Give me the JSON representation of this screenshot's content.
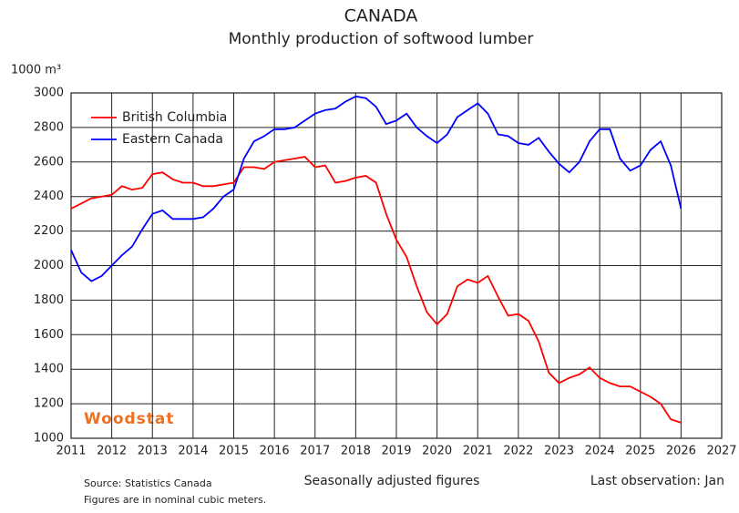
{
  "chart_data": {
    "type": "line",
    "title": "CANADA",
    "subtitle": "Monthly production of softwood lumber",
    "y_label": "1000 m³",
    "watermark": "Woodstat",
    "source": "Source: Statistics Canada",
    "note": "Figures are in nominal cubic meters.",
    "x_label": "Seasonally adjusted figures",
    "last_observation": "Last observation: Jan",
    "legend": "upper left",
    "grid": true,
    "xlim": [
      2011,
      2027
    ],
    "ylim": [
      1000,
      3000
    ],
    "xticks": [
      2011,
      2012,
      2013,
      2014,
      2015,
      2016,
      2017,
      2018,
      2019,
      2020,
      2021,
      2022,
      2023,
      2024,
      2025,
      2026,
      2027
    ],
    "yticks": [
      1000,
      1200,
      1400,
      1600,
      1800,
      2000,
      2200,
      2400,
      2600,
      2800,
      3000
    ],
    "x": [
      2011,
      2011.25,
      2011.5,
      2011.75,
      2012,
      2012.25,
      2012.5,
      2012.75,
      2013,
      2013.25,
      2013.5,
      2013.75,
      2014,
      2014.25,
      2014.5,
      2014.75,
      2015,
      2015.25,
      2015.5,
      2015.75,
      2016,
      2016.25,
      2016.5,
      2016.75,
      2017,
      2017.25,
      2017.5,
      2017.75,
      2018,
      2018.25,
      2018.5,
      2018.75,
      2019,
      2019.25,
      2019.5,
      2019.75,
      2020,
      2020.25,
      2020.5,
      2020.75,
      2021,
      2021.25,
      2021.5,
      2021.75,
      2022,
      2022.25,
      2022.5,
      2022.75,
      2023,
      2023.25,
      2023.5,
      2023.75,
      2024,
      2024.25,
      2024.5,
      2024.75,
      2025,
      2025.25,
      2025.5,
      2025.75,
      2026
    ],
    "series": [
      {
        "name": "British Columbia",
        "color": "#ff0000",
        "values": [
          2330,
          2360,
          2390,
          2400,
          2410,
          2460,
          2440,
          2450,
          2530,
          2540,
          2500,
          2480,
          2480,
          2460,
          2460,
          2470,
          2480,
          2570,
          2570,
          2560,
          2600,
          2610,
          2620,
          2630,
          2570,
          2580,
          2480,
          2490,
          2510,
          2520,
          2480,
          2300,
          2150,
          2050,
          1880,
          1730,
          1660,
          1720,
          1880,
          1920,
          1900,
          1940,
          1820,
          1710,
          1720,
          1680,
          1560,
          1380,
          1320,
          1350,
          1370,
          1410,
          1350,
          1320,
          1300,
          1300,
          1270,
          1240,
          1200,
          1110,
          1090
        ]
      },
      {
        "name": "Eastern Canada",
        "color": "#0000ff",
        "values": [
          2090,
          1960,
          1910,
          1940,
          2000,
          2060,
          2110,
          2210,
          2300,
          2320,
          2270,
          2270,
          2270,
          2280,
          2330,
          2400,
          2440,
          2620,
          2720,
          2750,
          2790,
          2790,
          2800,
          2840,
          2880,
          2900,
          2910,
          2950,
          2980,
          2970,
          2920,
          2820,
          2840,
          2880,
          2800,
          2750,
          2710,
          2760,
          2860,
          2900,
          2940,
          2880,
          2760,
          2750,
          2710,
          2700,
          2740,
          2660,
          2590,
          2540,
          2600,
          2720,
          2790,
          2790,
          2620,
          2550,
          2580,
          2670,
          2720,
          2580,
          2330
        ]
      }
    ]
  }
}
